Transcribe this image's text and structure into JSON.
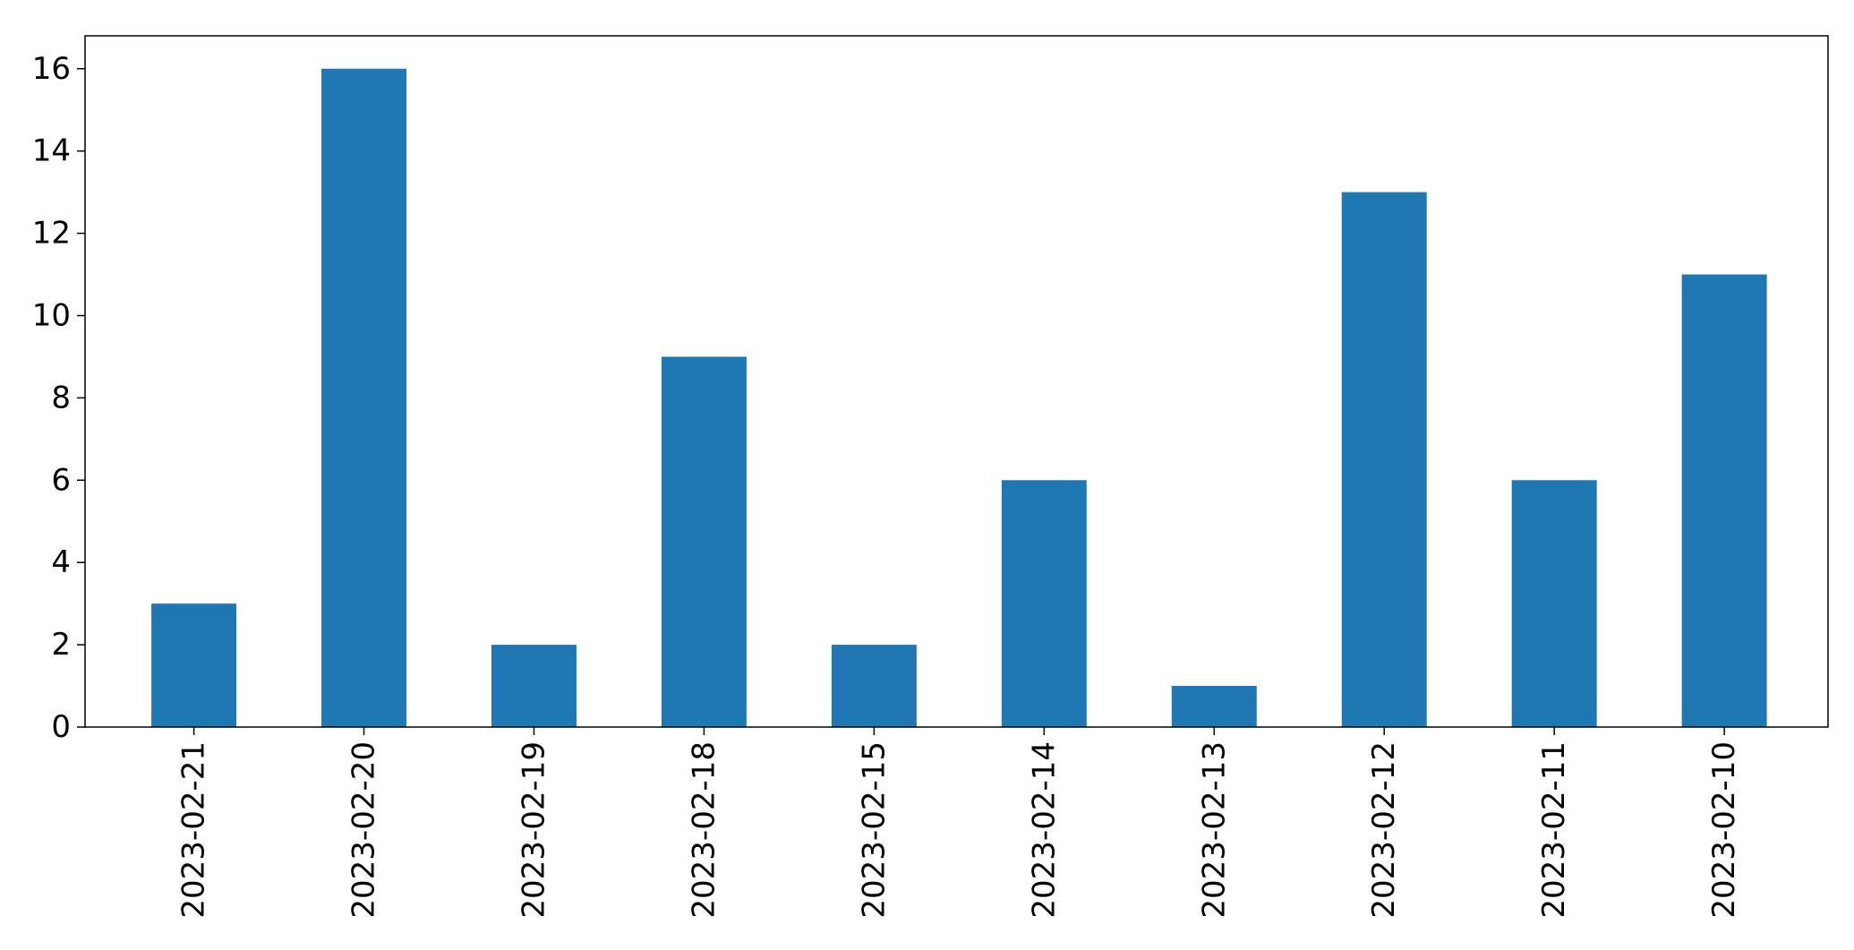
{
  "chart_data": {
    "type": "bar",
    "title": "",
    "xlabel": "",
    "ylabel": "",
    "categories": [
      "2023-02-21",
      "2023-02-20",
      "2023-02-19",
      "2023-02-18",
      "2023-02-15",
      "2023-02-14",
      "2023-02-13",
      "2023-02-12",
      "2023-02-11",
      "2023-02-10"
    ],
    "values": [
      3,
      16,
      2,
      9,
      2,
      6,
      1,
      13,
      6,
      11
    ],
    "ylim": [
      0,
      16.8
    ],
    "yticks": [
      0,
      2,
      4,
      6,
      8,
      10,
      12,
      14,
      16
    ],
    "grid": false,
    "legend": "none",
    "colors": {
      "bar": "#1f77b4",
      "axes": "#000000",
      "background": "#ffffff"
    }
  }
}
